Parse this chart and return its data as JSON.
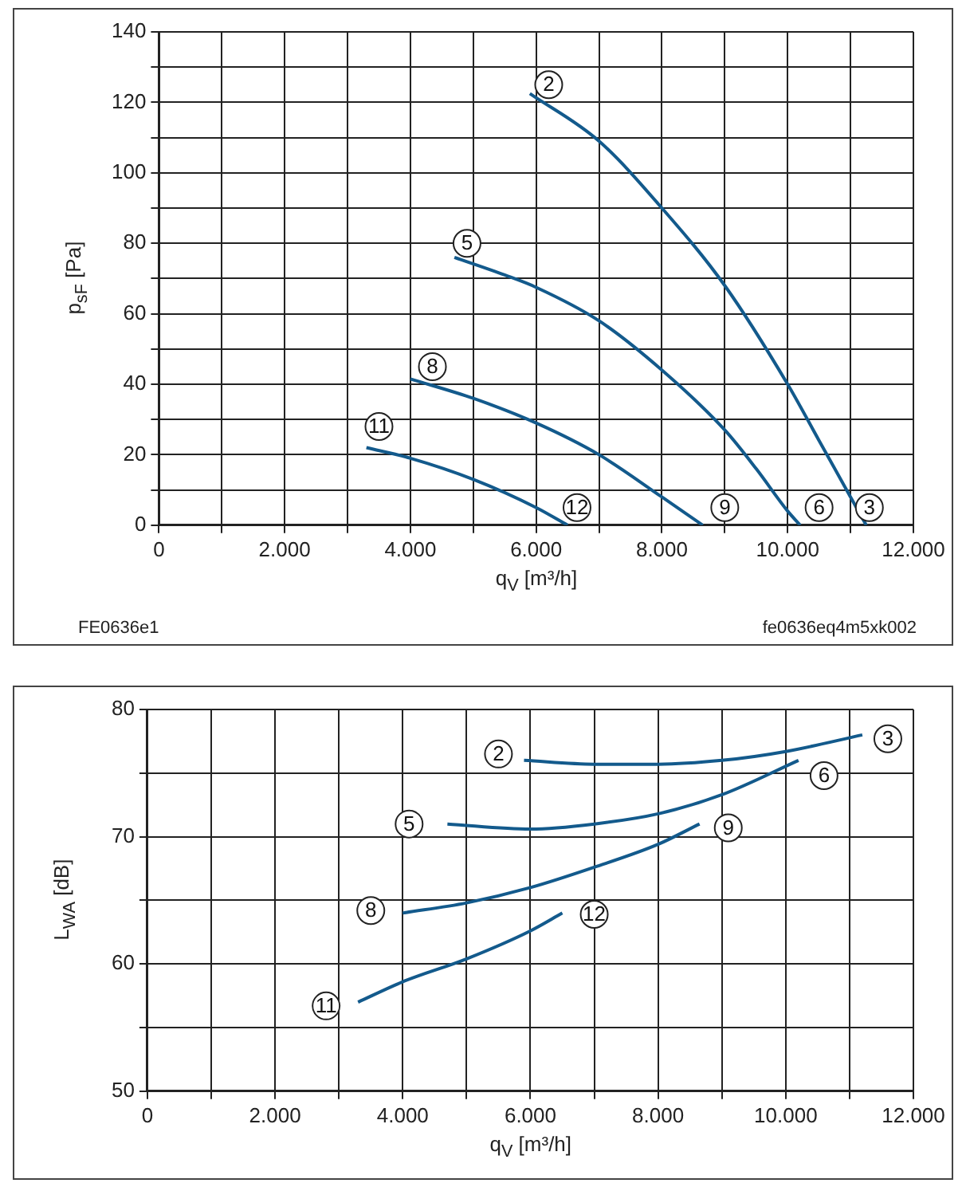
{
  "chart_data": [
    {
      "type": "line",
      "xlabel": "q$_{V}$ [m³/h]",
      "ylabel": "p$_{sF}$ [Pa]",
      "marker": "none",
      "grid": true,
      "xlim": [
        0,
        12000
      ],
      "xticks": [
        {
          "value": 0,
          "label": "0"
        },
        {
          "value": 1000,
          "label": null
        },
        {
          "value": 2000,
          "label": "2.000"
        },
        {
          "value": 3000,
          "label": null
        },
        {
          "value": 4000,
          "label": "4.000"
        },
        {
          "value": 5000,
          "label": null
        },
        {
          "value": 6000,
          "label": "6.000"
        },
        {
          "value": 7000,
          "label": null
        },
        {
          "value": 8000,
          "label": "8.000"
        },
        {
          "value": 9000,
          "label": null
        },
        {
          "value": 10000,
          "label": "10.000"
        },
        {
          "value": 11000,
          "label": null
        },
        {
          "value": 12000,
          "label": "12.000"
        }
      ],
      "ylim": [
        0,
        140
      ],
      "yticks": [
        0,
        {
          "value": 10,
          "label": null
        },
        20,
        {
          "value": 30,
          "label": null
        },
        40,
        {
          "value": 50,
          "label": null
        },
        60,
        {
          "value": 70,
          "label": null
        },
        80,
        {
          "value": 90,
          "label": null
        },
        100,
        {
          "value": 110,
          "label": null
        },
        120,
        {
          "value": 130,
          "label": null
        },
        140
      ],
      "series": [
        {
          "color": "#135a8c",
          "x": [
            5900,
            7000,
            8000,
            9000,
            10000,
            10500,
            11000,
            11250
          ],
          "values": [
            122.5,
            109,
            90,
            68,
            40,
            24,
            8,
            0
          ]
        },
        {
          "color": "#135a8c",
          "x": [
            4700,
            5500,
            6000,
            7000,
            8000,
            9000,
            9500,
            10000,
            10200
          ],
          "values": [
            76,
            71,
            67.5,
            58,
            44,
            27,
            16,
            4,
            0
          ]
        },
        {
          "color": "#135a8c",
          "x": [
            4000,
            5000,
            6000,
            7000,
            8000,
            8650
          ],
          "values": [
            41.5,
            36,
            29,
            20,
            8,
            0
          ]
        },
        {
          "color": "#135a8c",
          "x": [
            3300,
            4000,
            5000,
            6000,
            6500
          ],
          "values": [
            22,
            19,
            13,
            5,
            0
          ]
        }
      ],
      "annotations": [
        {
          "text": "2",
          "x": 6200,
          "y": 125
        },
        {
          "text": "5",
          "x": 4900,
          "y": 80
        },
        {
          "text": "8",
          "x": 4350,
          "y": 45
        },
        {
          "text": "11",
          "x": 3500,
          "y": 28
        },
        {
          "text": "12",
          "x": 6650,
          "y": 5
        },
        {
          "text": "9",
          "x": 9000,
          "y": 5
        },
        {
          "text": "6",
          "x": 10500,
          "y": 5
        },
        {
          "text": "3",
          "x": 11300,
          "y": 5
        },
        "FE0636e1",
        "fe0636eq4m5xk002"
      ]
    },
    {
      "type": "line",
      "xlabel": "q$_{V}$ [m³/h]",
      "ylabel": "L$_{WA}$ [dB]",
      "marker": "none",
      "grid": true,
      "xlim": [
        0,
        12000
      ],
      "xticks": [
        {
          "value": 0,
          "label": "0"
        },
        {
          "value": 1000,
          "label": null
        },
        {
          "value": 2000,
          "label": "2.000"
        },
        {
          "value": 3000,
          "label": null
        },
        {
          "value": 4000,
          "label": "4.000"
        },
        {
          "value": 5000,
          "label": null
        },
        {
          "value": 6000,
          "label": "6.000"
        },
        {
          "value": 7000,
          "label": null
        },
        {
          "value": 8000,
          "label": "8.000"
        },
        {
          "value": 9000,
          "label": null
        },
        {
          "value": 10000,
          "label": "10.000"
        },
        {
          "value": 11000,
          "label": null
        },
        {
          "value": 12000,
          "label": "12.000"
        }
      ],
      "ylim": [
        50,
        80
      ],
      "yticks": [
        50,
        {
          "value": 55,
          "label": null
        },
        60,
        {
          "value": 65,
          "label": null
        },
        70,
        {
          "value": 75,
          "label": null
        },
        80
      ],
      "series": [
        {
          "color": "#135a8c",
          "x": [
            5900,
            7000,
            8000,
            9000,
            10000,
            11200
          ],
          "values": [
            76,
            75.7,
            75.7,
            76,
            76.7,
            78
          ]
        },
        {
          "color": "#135a8c",
          "x": [
            4700,
            6000,
            7000,
            8000,
            9000,
            10200
          ],
          "values": [
            71,
            70.6,
            71,
            71.8,
            73.3,
            76
          ]
        },
        {
          "color": "#135a8c",
          "x": [
            4000,
            5000,
            6000,
            7000,
            8000,
            8650
          ],
          "values": [
            64,
            64.8,
            66,
            67.6,
            69.4,
            71
          ]
        },
        {
          "color": "#135a8c",
          "x": [
            3300,
            4000,
            5000,
            6000,
            6500
          ],
          "values": [
            57,
            58.6,
            60.4,
            62.6,
            64
          ]
        }
      ],
      "annotations": [
        {
          "text": "2",
          "x": 5500,
          "y": 76.5
        },
        {
          "text": "3",
          "x": 11600,
          "y": 77.7
        },
        {
          "text": "6",
          "x": 10600,
          "y": 74.8
        },
        {
          "text": "5",
          "x": 4100,
          "y": 71
        },
        {
          "text": "9",
          "x": 9100,
          "y": 70.7
        },
        {
          "text": "8",
          "x": 3500,
          "y": 64.2
        },
        {
          "text": "12",
          "x": 7000,
          "y": 63.9
        },
        {
          "text": "11",
          "x": 2800,
          "y": 56.7
        }
      ]
    }
  ]
}
